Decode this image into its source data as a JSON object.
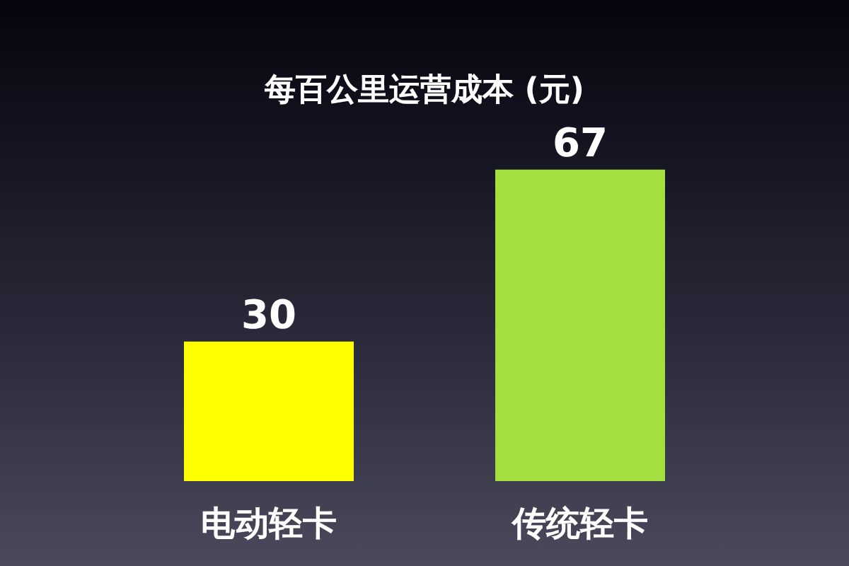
{
  "chart_data": {
    "type": "bar",
    "title": "每百公里运营成本 (元)",
    "categories": [
      "电动轻卡",
      "传统轻卡"
    ],
    "values": [
      30,
      67
    ],
    "colors": [
      "#ffff00",
      "#a3e03f"
    ],
    "data_labels": true
  }
}
